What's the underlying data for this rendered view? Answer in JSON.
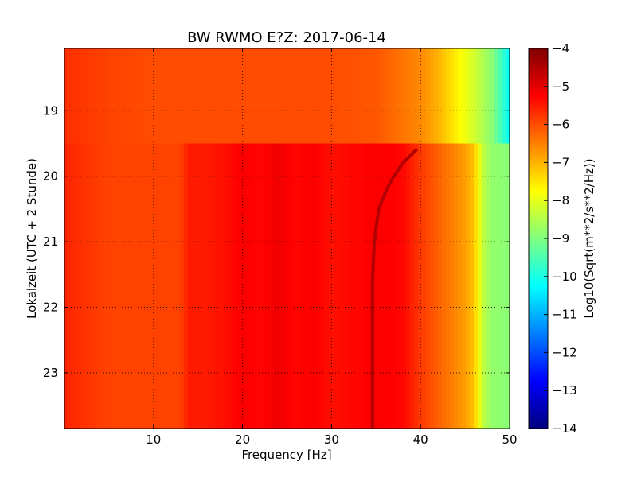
{
  "chart_data": {
    "type": "heatmap",
    "title": "BW RWMO E?Z: 2017-06-14",
    "xlabel": "Frequency [Hz]",
    "ylabel": "Lokalzeit (UTC + 2 Stunde)",
    "xlim": [
      0,
      50
    ],
    "ylim": [
      18.05,
      23.85
    ],
    "y_inverted": true,
    "x_ticks": [
      10,
      20,
      30,
      40,
      50
    ],
    "x_tick_labels": [
      "10",
      "20",
      "30",
      "40",
      "50"
    ],
    "y_ticks": [
      19,
      20,
      21,
      22,
      23
    ],
    "y_tick_labels": [
      "19",
      "20",
      "21",
      "22",
      "23"
    ],
    "grid": true,
    "colormap": "jet",
    "colorbar": {
      "label": "Log10(Sqrt(m**2/s**2/Hz))",
      "range": [
        -14,
        -4
      ],
      "ticks": [
        -4,
        -5,
        -6,
        -7,
        -8,
        -9,
        -10,
        -11,
        -12,
        -13,
        -14
      ],
      "tick_labels": [
        "−4",
        "−5",
        "−6",
        "−7",
        "−8",
        "−9",
        "−10",
        "−11",
        "−12",
        "−13",
        "−14"
      ]
    },
    "regime_change_time": 19.5,
    "early_profile": {
      "hours": [
        18.05,
        19.5
      ],
      "freq": [
        0,
        5,
        10,
        15,
        20,
        25,
        30,
        35,
        40,
        42,
        44,
        46,
        48,
        49,
        50
      ],
      "level": [
        -5.7,
        -5.9,
        -6.0,
        -6.0,
        -6.0,
        -6.0,
        -6.0,
        -6.1,
        -6.6,
        -7.0,
        -7.6,
        -8.2,
        -8.9,
        -9.6,
        -10.3
      ]
    },
    "late_profile": {
      "hours": [
        19.5,
        23.85
      ],
      "freq": [
        0,
        5,
        10,
        13,
        14,
        16,
        18,
        20,
        22,
        24,
        26,
        28,
        30,
        33,
        35,
        38,
        40,
        41,
        43,
        45,
        46,
        47,
        48,
        50
      ],
      "level": [
        -5.6,
        -5.9,
        -5.9,
        -5.9,
        -5.5,
        -5.5,
        -5.4,
        -5.2,
        -5.3,
        -5.1,
        -5.3,
        -5.2,
        -5.4,
        -5.3,
        -5.2,
        -5.3,
        -5.8,
        -6.0,
        -6.4,
        -6.8,
        -7.2,
        -8.4,
        -8.8,
        -8.9
      ]
    },
    "drifting_tone": {
      "points": [
        {
          "hour": 19.6,
          "freq": 39.5
        },
        {
          "hour": 19.8,
          "freq": 38.0
        },
        {
          "hour": 20.0,
          "freq": 37.0
        },
        {
          "hour": 20.2,
          "freq": 36.2
        },
        {
          "hour": 20.5,
          "freq": 35.3
        },
        {
          "hour": 20.8,
          "freq": 35.0
        },
        {
          "hour": 21.0,
          "freq": 34.8
        },
        {
          "hour": 21.3,
          "freq": 34.7
        },
        {
          "hour": 21.6,
          "freq": 34.6
        },
        {
          "hour": 22.0,
          "freq": 34.6
        },
        {
          "hour": 22.5,
          "freq": 34.6
        },
        {
          "hour": 23.0,
          "freq": 34.6
        },
        {
          "hour": 23.5,
          "freq": 34.6
        },
        {
          "hour": 23.85,
          "freq": 34.6
        }
      ],
      "level": -4.5
    }
  }
}
